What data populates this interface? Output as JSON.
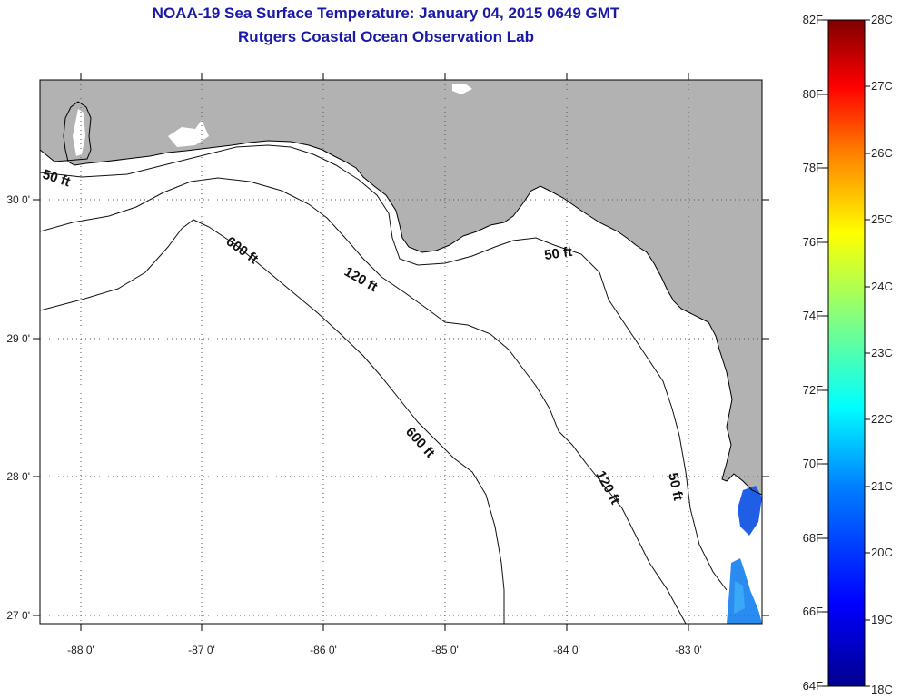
{
  "title": "NOAA-19 Sea Surface Temperature:  January 04, 2015 0649 GMT",
  "subtitle": "Rutgers Coastal Ocean Observation Lab",
  "map": {
    "lon_labels": [
      "-88 0'",
      "-87 0'",
      "-86 0'",
      "-85 0'",
      "-84 0'",
      "-83 0'"
    ],
    "lat_labels": [
      "30 0'",
      "29 0'",
      "28 0'",
      "27 0'"
    ],
    "contour_labels": [
      "50 ft",
      "50 ft",
      "50 ft",
      "120 ft",
      "120 ft",
      "600 ft",
      "600 ft"
    ],
    "land_color": "#b2b2b2",
    "water_color": "#ffffff"
  },
  "colorbar": {
    "fahrenheit": [
      "82F",
      "80F",
      "78F",
      "76F",
      "74F",
      "72F",
      "70F",
      "68F",
      "66F",
      "64F"
    ],
    "celsius": [
      "28C",
      "27C",
      "26C",
      "25C",
      "24C",
      "23C",
      "22C",
      "21C",
      "20C",
      "19C",
      "18C"
    ],
    "colors": [
      "#00008f",
      "#0000ff",
      "#0080ff",
      "#00ffff",
      "#80ff80",
      "#ffff00",
      "#ff8000",
      "#ff0000",
      "#800000"
    ]
  }
}
